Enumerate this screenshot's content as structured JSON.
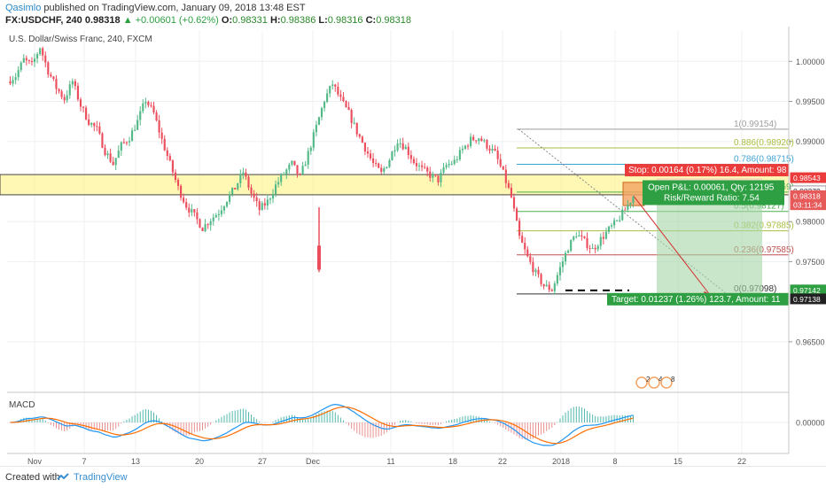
{
  "header": {
    "author": "Qasimlo",
    "published_text": "published on TradingView.com, January 09, 2018 13:48 EST",
    "symbol": "FX:USDCHF, 240",
    "last": "0.98318",
    "change": "▲ +0.00601 (+0.62%)",
    "o_label": "O:",
    "o_value": "0.98331",
    "h_label": "H:",
    "h_value": "0.98386",
    "l_label": "L:",
    "l_value": "0.98316",
    "c_label": "C:",
    "c_value": "0.98318"
  },
  "chart_title": "U.S. Dollar/Swiss Franc, 240, FXCM",
  "footer": {
    "created": "Created with",
    "brand": "TradingView"
  },
  "colors": {
    "up": "#53b987",
    "down": "#eb4d5c",
    "zone": "#fff176",
    "target": "#2ea043",
    "stop": "#eb3b3b",
    "fib": "#aabf3f"
  },
  "chart_data": {
    "type": "candlestick",
    "symbol": "USDCHF",
    "timeframe": "240",
    "x_ticks": [
      "Nov",
      "7",
      "13",
      "20",
      "27",
      "Dec",
      "11",
      "18",
      "22",
      "2018",
      "8",
      "15",
      "22"
    ],
    "y_ticks": [
      "1.00000",
      "0.99500",
      "0.99000",
      "0.98000",
      "0.97500",
      "0.96500"
    ],
    "ylim": [
      0.9588,
      1.0039
    ],
    "price_path": [
      0.9975,
      0.9982,
      1.0002,
      0.9995,
      1.0018,
      0.9988,
      0.9967,
      0.9953,
      0.9975,
      0.9945,
      0.9925,
      0.9915,
      0.9888,
      0.9872,
      0.9895,
      0.9905,
      0.9925,
      0.9952,
      0.9935,
      0.9902,
      0.9872,
      0.9842,
      0.982,
      0.9807,
      0.9792,
      0.9803,
      0.9812,
      0.9828,
      0.9842,
      0.9862,
      0.9835,
      0.9815,
      0.9825,
      0.9845,
      0.986,
      0.9872,
      0.9855,
      0.9885,
      0.9918,
      0.9952,
      0.9972,
      0.9952,
      0.9935,
      0.9912,
      0.9892,
      0.9872,
      0.986,
      0.9878,
      0.9902,
      0.9892,
      0.9875,
      0.9865,
      0.9858,
      0.9852,
      0.987,
      0.9875,
      0.989,
      0.9902,
      0.9905,
      0.9895,
      0.9885,
      0.986,
      0.983,
      0.978,
      0.9755,
      0.9735,
      0.972,
      0.9715,
      0.9742,
      0.9768,
      0.9785,
      0.9775,
      0.9765,
      0.9778,
      0.979,
      0.98,
      0.9815,
      0.9832
    ],
    "zone": [
      0.98543,
      0.98379
    ],
    "price_labels": [
      "0.98543",
      "0.98379",
      "0.98318",
      "03:11:34",
      "0.97142",
      "0.97138"
    ],
    "fib_levels": [
      {
        "label": "1(0.99154)",
        "value": 0.99154
      },
      {
        "label": "0.886(0.98920)",
        "value": 0.9892
      },
      {
        "label": "0.786(0.98715)",
        "value": 0.98715
      },
      {
        "label": "0.618(0.98369)",
        "value": 0.98369
      },
      {
        "label": "0.5(0.98127)",
        "value": 0.98127
      },
      {
        "label": "0.382(0.97885)",
        "value": 0.97885
      },
      {
        "label": "0.236(0.97585)",
        "value": 0.97585
      },
      {
        "label": "0(0.97098)",
        "value": 0.97098
      }
    ],
    "position": {
      "stop_text": "Stop: 0.00164 (0.17%) 16.4, Amount: 98",
      "open_text": "Open P&L: 0.00061, Qty: 12195",
      "rr_text": "Risk/Reward Ratio: 7.54",
      "target_text": "Target: 0.01237 (1.26%) 123.7, Amount: 11"
    },
    "events": [
      "2",
      "4",
      "8"
    ],
    "macd": {
      "label": "MACD",
      "y_ticks": [
        "0.00000"
      ]
    }
  }
}
